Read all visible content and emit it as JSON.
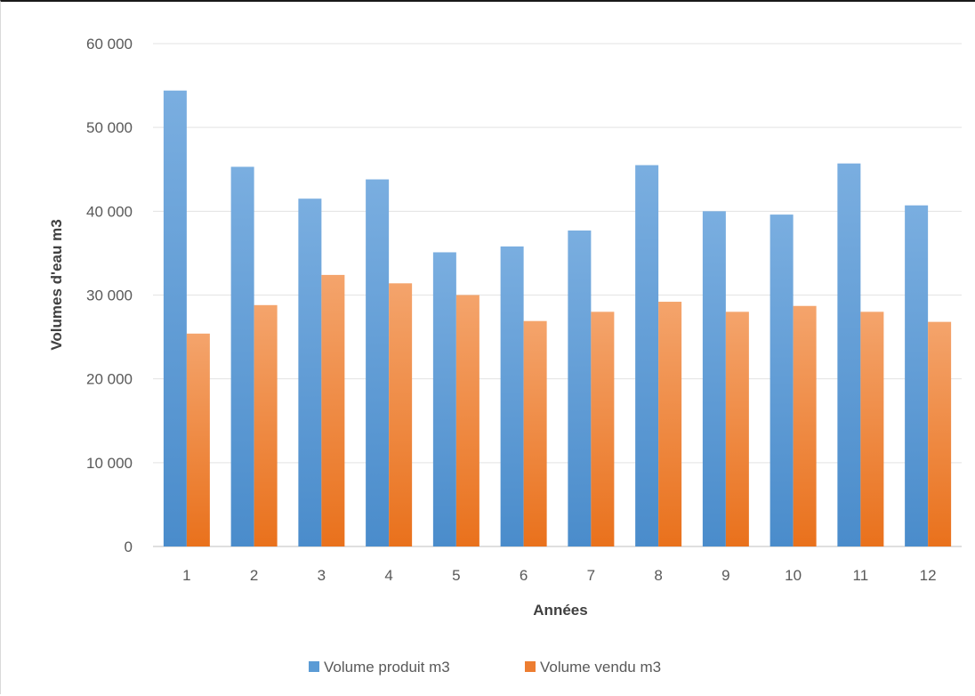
{
  "chart_data": {
    "type": "bar",
    "xlabel": "Années",
    "ylabel": "Volumes d'eau m3",
    "categories": [
      "1",
      "2",
      "3",
      "4",
      "5",
      "6",
      "7",
      "8",
      "9",
      "10",
      "11",
      "12"
    ],
    "ylim": [
      0,
      60000
    ],
    "yticks": [
      0,
      10000,
      20000,
      30000,
      40000,
      50000,
      60000
    ],
    "ytick_labels": [
      "0",
      "10 000",
      "20 000",
      "30 000",
      "40 000",
      "50 000",
      "60 000"
    ],
    "grid": true,
    "legend_position": "bottom",
    "series": [
      {
        "name": "Volume produit m3",
        "color": "#5b9bd5",
        "color_light": "#7aaee0",
        "color_dark": "#4a8ccb",
        "values": [
          54400,
          45300,
          41500,
          43800,
          35100,
          35800,
          37700,
          45500,
          40000,
          39600,
          45700,
          40700
        ]
      },
      {
        "name": "Volume vendu m3",
        "color": "#ed7d31",
        "color_light": "#f4a46c",
        "color_dark": "#e9711c",
        "values": [
          25400,
          28800,
          32400,
          31400,
          30000,
          26900,
          28000,
          29200,
          28000,
          28700,
          28000,
          26800
        ]
      }
    ]
  }
}
